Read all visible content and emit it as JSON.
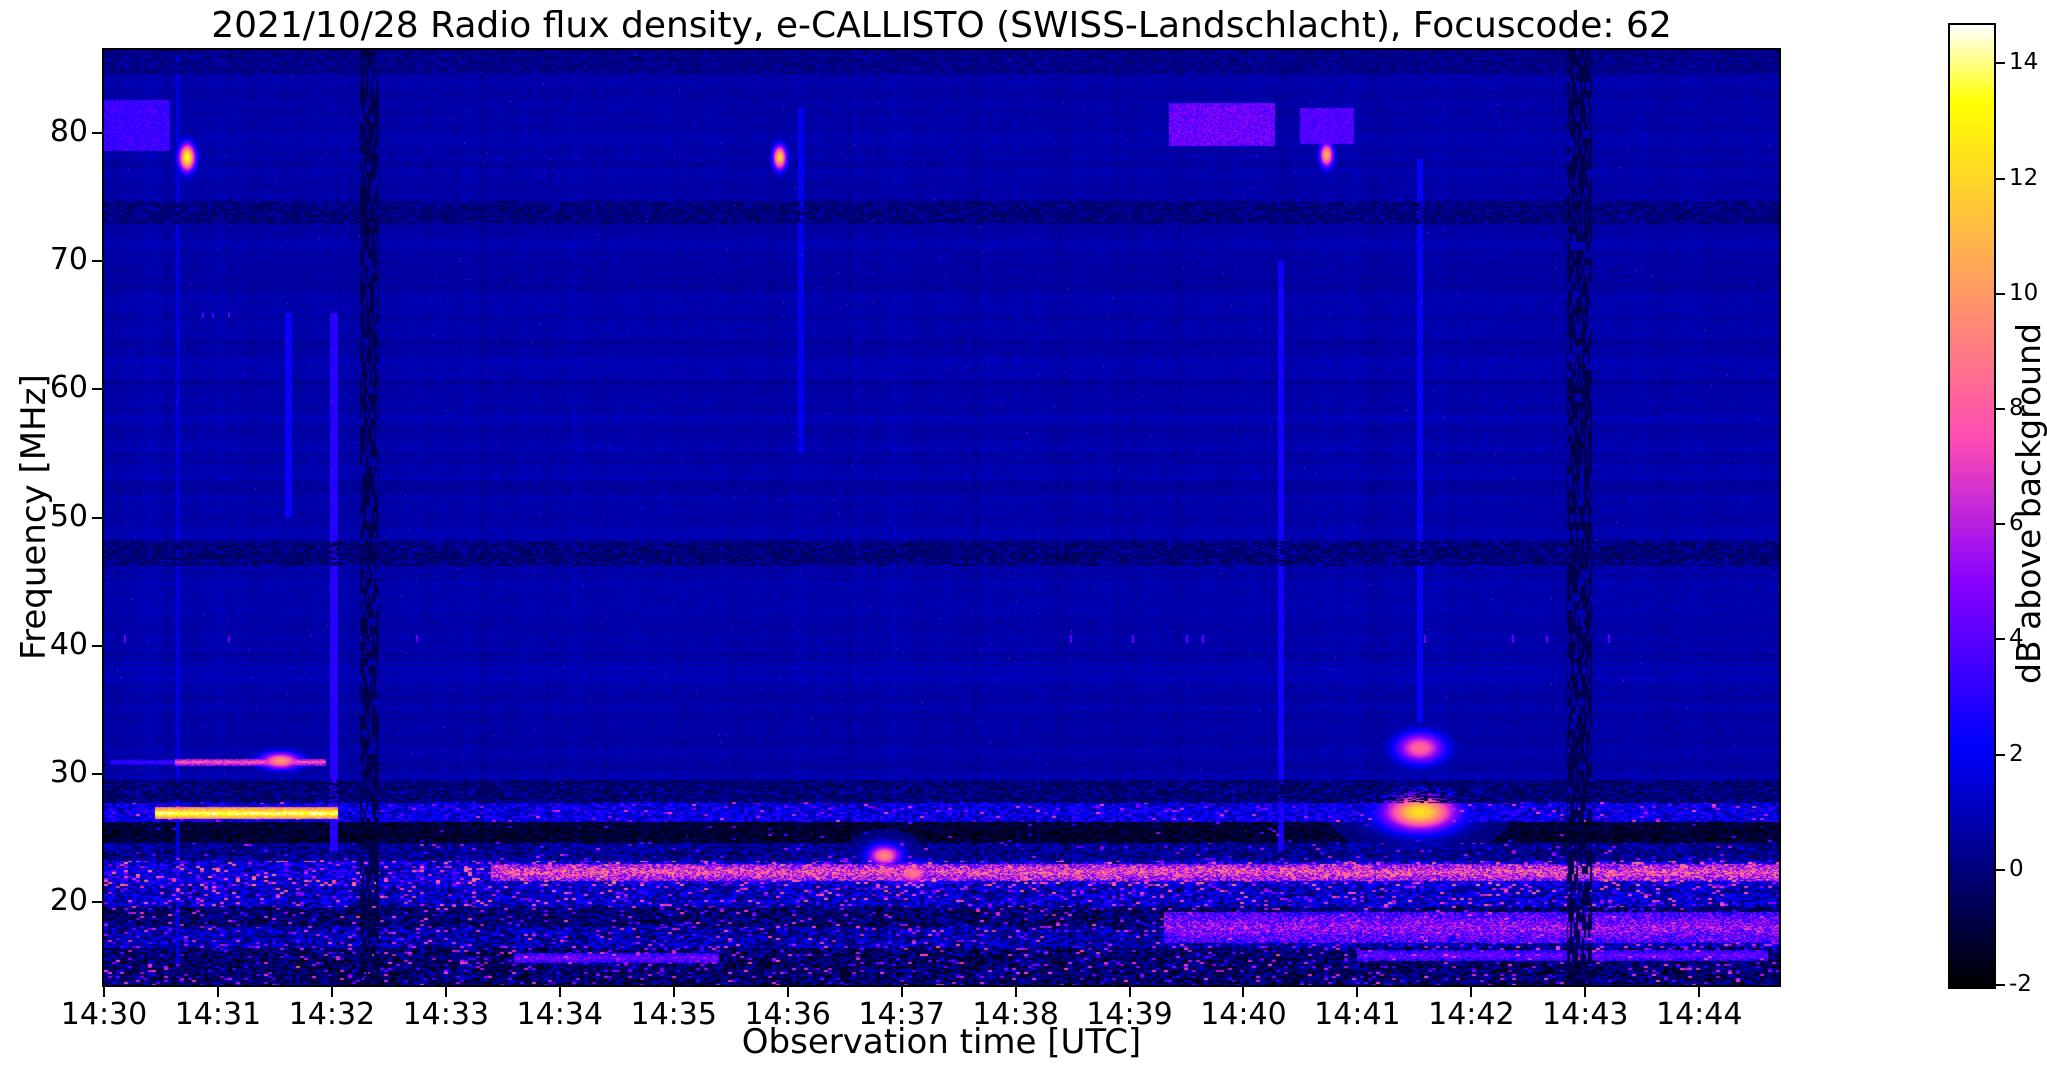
{
  "chart_data": {
    "type": "heatmap",
    "title": "2021/10/28  Radio flux density, e-CALLISTO (SWISS-Landschlacht), Focuscode: 62",
    "xlabel": "Observation time [UTC]",
    "ylabel": "Frequency [MHz]",
    "x_ticks": [
      "14:30",
      "14:31",
      "14:32",
      "14:33",
      "14:34",
      "14:35",
      "14:36",
      "14:37",
      "14:38",
      "14:39",
      "14:40",
      "14:41",
      "14:42",
      "14:43",
      "14:44"
    ],
    "x_tick_minutes": [
      0,
      1,
      2,
      3,
      4,
      5,
      6,
      7,
      8,
      9,
      10,
      11,
      12,
      13,
      14
    ],
    "time_origin": "14:30",
    "duration_minutes": 14.7,
    "y_ticks": [
      80,
      70,
      60,
      50,
      40,
      30,
      20
    ],
    "y_range_mhz": [
      13.5,
      86.5
    ],
    "grid": false,
    "colorbar": {
      "label": "dB above background",
      "ticks": [
        14,
        12,
        10,
        8,
        6,
        4,
        2,
        0,
        -2
      ],
      "range": [
        -2,
        14.7
      ],
      "colormap": "gnuplot2",
      "colormap_stops": [
        "#000000",
        "#0000aa",
        "#2a00ff",
        "#8000d8",
        "#e040b0",
        "#ff7060",
        "#ffcc20",
        "#ffff60",
        "#ffffff"
      ]
    },
    "background_level_db": 0.75,
    "noise_sd_db": 0.5,
    "low_bands": [
      {
        "f0": 26.2,
        "f1": 27.8,
        "mean": 1.8,
        "spread": 1.4,
        "sparkle": 0.06,
        "spark_max": 5
      },
      {
        "f0": 24.6,
        "f1": 26.2,
        "mean": -1.1,
        "spread": 0.6,
        "sparkle": 0.01,
        "spark_max": 3
      },
      {
        "f0": 23.2,
        "f1": 24.6,
        "mean": 0.4,
        "spread": 1.1,
        "sparkle": 0.03,
        "spark_max": 4
      },
      {
        "f0": 21.2,
        "f1": 23.2,
        "mean": 1.6,
        "spread": 1.8,
        "sparkle": 0.18,
        "spark_max": 7
      },
      {
        "f0": 19.6,
        "f1": 21.2,
        "mean": 1.2,
        "spread": 1.6,
        "sparkle": 0.14,
        "spark_max": 6
      },
      {
        "f0": 18.0,
        "f1": 19.6,
        "mean": -0.2,
        "spread": 1.4,
        "sparkle": 0.07,
        "spark_max": 5
      },
      {
        "f0": 16.4,
        "f1": 18.0,
        "mean": 0.8,
        "spread": 1.6,
        "sparkle": 0.1,
        "spark_max": 5
      },
      {
        "f0": 13.5,
        "f1": 16.4,
        "mean": -0.3,
        "spread": 1.5,
        "sparkle": 0.08,
        "spark_max": 5
      }
    ],
    "features": [
      {
        "type": "hband",
        "f0": 78.6,
        "f1": 82.6,
        "t0": 0.0,
        "t1": 0.58,
        "value": 3.4,
        "noise": 1.0,
        "desc": "broadband RFI patch ~80 MHz at 14:30"
      },
      {
        "type": "hband",
        "f0": 79.0,
        "f1": 82.4,
        "t0": 9.35,
        "t1": 10.28,
        "value": 4.4,
        "noise": 1.3,
        "desc": "bright RFI band ~80 MHz 14:39.3-14:40.3"
      },
      {
        "type": "hband",
        "f0": 79.2,
        "f1": 82.0,
        "t0": 10.5,
        "t1": 10.97,
        "value": 3.9,
        "noise": 1.1,
        "desc": "RFI band ~80 MHz 14:40.5-14:41"
      },
      {
        "type": "dot",
        "f": 78.1,
        "t": 0.73,
        "value": 13.5,
        "w": 0.06,
        "h": 0.9,
        "desc": "yellow point 78 MHz at 14:30.7"
      },
      {
        "type": "dot",
        "f": 78.1,
        "t": 5.93,
        "value": 12.0,
        "w": 0.05,
        "h": 0.8,
        "desc": "yellow point 78 MHz at 14:35.9"
      },
      {
        "type": "dot",
        "f": 78.3,
        "t": 10.73,
        "value": 11.0,
        "w": 0.05,
        "h": 0.8,
        "desc": "orange point 78 MHz at 14:40.7"
      },
      {
        "type": "hline",
        "f": 26.9,
        "t0": 0.45,
        "t1": 2.05,
        "value": 14.0,
        "h": 0.95,
        "noise": 1.2,
        "desc": "intense white line ~27 MHz 14:30.5-14:32"
      },
      {
        "type": "hline",
        "f": 30.9,
        "t0": 0.05,
        "t1": 0.65,
        "value": 3.5,
        "h": 0.4,
        "noise": 0.6
      },
      {
        "type": "hline",
        "f": 30.9,
        "t0": 0.62,
        "t1": 1.95,
        "value": 7.5,
        "h": 0.55,
        "noise": 1.0,
        "desc": "magenta line ~31 MHz"
      },
      {
        "type": "dot",
        "f": 31.0,
        "t": 1.55,
        "value": 10.0,
        "w": 0.15,
        "h": 0.55
      },
      {
        "type": "dot",
        "f": 27.0,
        "t": 11.55,
        "value": 12.5,
        "w": 0.27,
        "h": 1.2,
        "desc": "orange blob 27 MHz at 14:41.5"
      },
      {
        "type": "dot",
        "f": 32.0,
        "t": 11.55,
        "value": 8.5,
        "w": 0.18,
        "h": 1.0,
        "desc": "pink blob 32 MHz at 14:41.5"
      },
      {
        "type": "vline",
        "t": 2.02,
        "f0": 24,
        "f1": 66,
        "value": 3.0,
        "w": 0.035,
        "desc": "faint vertical streak at 14:32"
      },
      {
        "type": "vline",
        "t": 1.62,
        "f0": 50,
        "f1": 66,
        "value": 2.3,
        "w": 0.03
      },
      {
        "type": "vline",
        "t": 6.12,
        "f0": 55,
        "f1": 82,
        "value": 2.0,
        "w": 0.025
      },
      {
        "type": "vline",
        "t": 10.33,
        "f0": 24,
        "f1": 70,
        "value": 2.6,
        "w": 0.03,
        "desc": "faint vertical streak at 14:40.3"
      },
      {
        "type": "vline",
        "t": 11.55,
        "f0": 34,
        "f1": 78,
        "value": 2.2,
        "w": 0.03
      },
      {
        "type": "vline",
        "t": 0.65,
        "f0": 15,
        "f1": 86,
        "value": 1.7,
        "w": 0.02
      },
      {
        "type": "hline",
        "f": 22.3,
        "t0": 3.4,
        "t1": 14.7,
        "value": 6.3,
        "h": 1.3,
        "noise": 3.0,
        "desc": "speckled orange interference band ~22 MHz"
      },
      {
        "type": "hline",
        "f": 18.0,
        "t0": 9.3,
        "t1": 14.7,
        "value": 4.3,
        "h": 2.4,
        "noise": 2.2,
        "desc": "pink speckle band 17-19 MHz after 14:39"
      },
      {
        "type": "hline",
        "f": 15.6,
        "t0": 3.6,
        "t1": 5.4,
        "value": 4.0,
        "h": 0.8,
        "noise": 1.5
      },
      {
        "type": "hline",
        "f": 15.8,
        "t0": 11.0,
        "t1": 14.6,
        "value": 3.8,
        "h": 0.9,
        "noise": 1.5
      },
      {
        "type": "dot",
        "f": 23.6,
        "t": 6.85,
        "value": 9.5,
        "w": 0.12,
        "h": 0.7
      },
      {
        "type": "dot",
        "f": 22.2,
        "t": 7.1,
        "value": 9.0,
        "w": 0.12,
        "h": 0.7
      },
      {
        "type": "sparserow",
        "f": 40.5,
        "h": 0.6,
        "t0": 0,
        "t1": 14.7,
        "prob": 0.012,
        "value": 4.5,
        "desc": "sparse pink dots ~40.5 MHz"
      },
      {
        "type": "sparserow",
        "f": 65.8,
        "h": 0.5,
        "t0": 0.8,
        "t1": 2.2,
        "prob": 0.03,
        "value": 4.0
      },
      {
        "type": "darkrow",
        "f": 28.6,
        "h": 1.8,
        "value": -1.0
      },
      {
        "type": "darkrow",
        "f": 47.2,
        "h": 2.0,
        "value": -0.9,
        "desc": "dark channel band ~47 MHz"
      },
      {
        "type": "darkrow",
        "f": 73.8,
        "h": 1.8,
        "value": -0.8,
        "desc": "dark channel band ~74 MHz"
      },
      {
        "type": "darkrow",
        "f": 85.6,
        "h": 2.0,
        "value": -0.5
      },
      {
        "type": "darkcol",
        "t": 2.33,
        "w": 0.17,
        "value": -1.3,
        "desc": "dashed dark gap near 14:32.3"
      },
      {
        "type": "darkcol",
        "t": 12.95,
        "w": 0.22,
        "value": -1.3,
        "desc": "dashed dark gap near 14:43"
      }
    ]
  }
}
